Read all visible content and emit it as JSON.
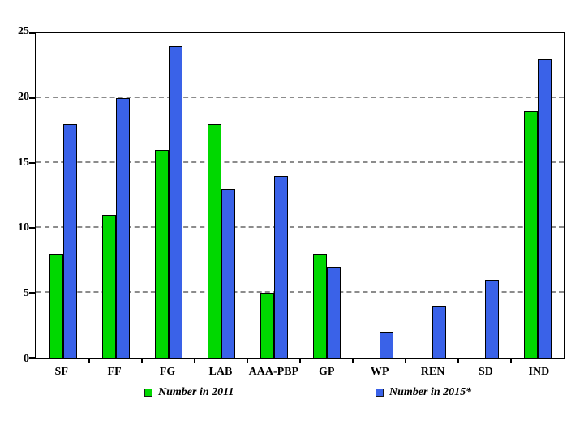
{
  "chart_data": {
    "type": "bar",
    "title": "",
    "xlabel": "",
    "ylabel": "",
    "categories": [
      "SF",
      "FF",
      "FG",
      "LAB",
      "AAA-PBP",
      "GP",
      "WP",
      "REN",
      "SD",
      "IND"
    ],
    "series": [
      {
        "name": "Number in 2011",
        "color": "#00d800",
        "values": [
          8,
          11,
          16,
          18,
          5,
          8,
          0,
          0,
          0,
          19
        ]
      },
      {
        "name": "Number in 2015*",
        "color": "#3a62e8",
        "values": [
          18,
          20,
          24,
          13,
          14,
          7,
          2,
          4,
          6,
          23
        ]
      }
    ],
    "ylim": [
      0,
      25
    ],
    "yticks": [
      0,
      5,
      10,
      15,
      20,
      25
    ],
    "grid": "horizontal-dashed",
    "legend_position": "bottom"
  },
  "colors": {
    "background": "#ffffff",
    "axis": "#000000",
    "gridline": "#8c8c8c",
    "bar_border": "#000000",
    "text": "#000000"
  }
}
